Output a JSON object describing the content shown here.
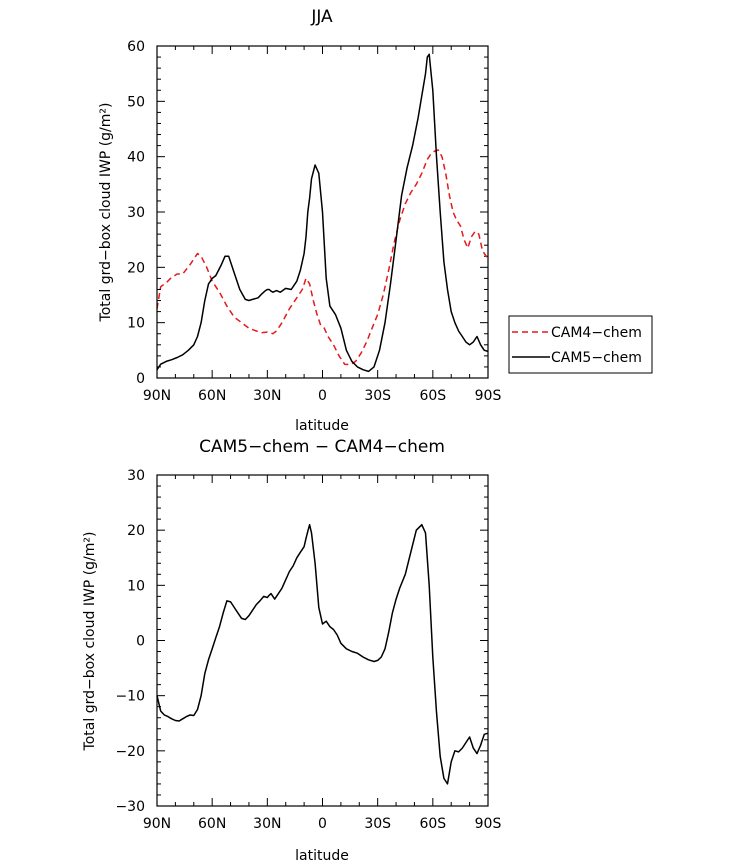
{
  "chart_data": [
    {
      "type": "line",
      "title": "JJA",
      "xlabel": "latitude",
      "ylabel": "Total grd−box cloud IWP (g/m²)",
      "x_tick_labels": [
        "90N",
        "60N",
        "30N",
        "0",
        "30S",
        "60S",
        "90S"
      ],
      "x_tick_values": [
        90,
        60,
        30,
        0,
        -30,
        -60,
        -90
      ],
      "xlim": [
        90,
        -90
      ],
      "y_tick_labels": [
        "0",
        "10",
        "20",
        "30",
        "40",
        "50",
        "60"
      ],
      "y_tick_values": [
        0,
        10,
        20,
        30,
        40,
        50,
        60
      ],
      "ylim": [
        0,
        60
      ],
      "legend": "right",
      "series": [
        {
          "name": "CAM4−chem",
          "color": "#e41a1c",
          "dash": "dashed",
          "x": [
            90,
            88,
            85,
            82,
            79,
            76,
            72,
            68,
            66,
            63,
            60,
            56,
            52,
            48,
            44,
            40,
            36,
            33,
            30,
            27,
            25,
            22,
            18,
            14,
            11,
            9,
            7,
            5,
            3,
            1,
            -1,
            -3,
            -6,
            -9,
            -12,
            -15,
            -18,
            -21,
            -24,
            -27,
            -30,
            -33,
            -36,
            -39,
            -42,
            -45,
            -48,
            -51,
            -54,
            -57,
            -59,
            -61,
            -63,
            -65,
            -67,
            -69,
            -71,
            -73,
            -75,
            -77,
            -79,
            -81,
            -83,
            -85,
            -87,
            -89,
            -90
          ],
          "y": [
            12.5,
            16.5,
            17.2,
            18.2,
            18.8,
            18.8,
            20.5,
            22.5,
            22.0,
            20.0,
            17.5,
            15.5,
            13.0,
            11.0,
            10.0,
            9.0,
            8.5,
            8.2,
            8.3,
            8.0,
            8.5,
            10.0,
            12.5,
            14.5,
            16.0,
            18.0,
            17.0,
            14.0,
            11.5,
            9.5,
            9.0,
            7.5,
            6.0,
            4.0,
            2.5,
            2.4,
            3.0,
            4.5,
            6.5,
            9.0,
            11.5,
            15.0,
            19.5,
            24.5,
            28.5,
            31.5,
            33.5,
            35.0,
            37.0,
            39.5,
            40.5,
            41.0,
            41.2,
            40.0,
            37.0,
            33.0,
            30.0,
            28.5,
            27.5,
            25.0,
            23.5,
            25.5,
            26.5,
            26.0,
            23.0,
            22.0,
            21.5
          ]
        },
        {
          "name": "CAM5−chem",
          "color": "#000000",
          "dash": "solid",
          "x": [
            90,
            88,
            85,
            82,
            79,
            76,
            73,
            70,
            68,
            66,
            64,
            62,
            60,
            58,
            55,
            53,
            51,
            48,
            45,
            42,
            40,
            38,
            35,
            33,
            31,
            30,
            29,
            28,
            27,
            25,
            23,
            20,
            17,
            14,
            12,
            10,
            9,
            8,
            7,
            6,
            4,
            2,
            0,
            -2,
            -4,
            -7,
            -10,
            -13,
            -16,
            -19,
            -22,
            -25,
            -28,
            -31,
            -34,
            -37,
            -40,
            -43,
            -46,
            -49,
            -52,
            -54,
            -56,
            -57,
            -58,
            -60,
            -62,
            -64,
            -66,
            -68,
            -70,
            -72,
            -74,
            -76,
            -78,
            -80,
            -82,
            -84,
            -86,
            -88,
            -90
          ],
          "y": [
            1.5,
            2.5,
            3.0,
            3.3,
            3.7,
            4.2,
            5.0,
            6.0,
            7.5,
            10.0,
            14.0,
            17.0,
            18.0,
            18.5,
            20.5,
            22.0,
            22.0,
            19.0,
            16.0,
            14.2,
            14.0,
            14.2,
            14.5,
            15.2,
            15.8,
            16.0,
            16.0,
            15.7,
            15.5,
            15.8,
            15.5,
            16.2,
            16.0,
            17.5,
            19.5,
            22.5,
            25.5,
            30.0,
            32.5,
            36.0,
            38.5,
            37.0,
            30.0,
            18.0,
            13.0,
            11.5,
            9.0,
            5.0,
            3.0,
            2.0,
            1.5,
            1.2,
            2.0,
            5.0,
            10.0,
            17.0,
            25.0,
            33.0,
            38.0,
            42.0,
            47.0,
            51.0,
            55.0,
            58.0,
            58.5,
            52.0,
            40.0,
            30.0,
            21.0,
            16.0,
            12.0,
            10.0,
            8.5,
            7.5,
            6.5,
            6.0,
            6.5,
            7.5,
            6.0,
            5.0,
            4.8
          ]
        }
      ]
    },
    {
      "type": "line",
      "title": "CAM5−chem − CAM4−chem",
      "xlabel": "latitude",
      "ylabel": "Total grd−box cloud IWP (g/m²)",
      "x_tick_labels": [
        "90N",
        "60N",
        "30N",
        "0",
        "30S",
        "60S",
        "90S"
      ],
      "x_tick_values": [
        90,
        60,
        30,
        0,
        -30,
        -60,
        -90
      ],
      "xlim": [
        90,
        -90
      ],
      "y_tick_labels": [
        "−30",
        "−20",
        "−10",
        "0",
        "10",
        "20",
        "30"
      ],
      "y_tick_values": [
        -30,
        -20,
        -10,
        0,
        10,
        20,
        30
      ],
      "ylim": [
        -30,
        30
      ],
      "series": [
        {
          "color": "#000000",
          "dash": "solid",
          "x": [
            90,
            88,
            86,
            84,
            82,
            80,
            78,
            76,
            74,
            72,
            70,
            68,
            66,
            64,
            62,
            60,
            58,
            56,
            54,
            52,
            50,
            48,
            46,
            44,
            42,
            40,
            38,
            36,
            34,
            32,
            30,
            29,
            28,
            27,
            26,
            24,
            22,
            20,
            18,
            16,
            14,
            12,
            10,
            9,
            8,
            7,
            6,
            4,
            2,
            0,
            -2,
            -4,
            -6,
            -8,
            -10,
            -13,
            -16,
            -19,
            -22,
            -25,
            -28,
            -30,
            -32,
            -34,
            -36,
            -38,
            -40,
            -42,
            -45,
            -48,
            -51,
            -54,
            -56,
            -58,
            -60,
            -62,
            -64,
            -66,
            -68,
            -70,
            -72,
            -74,
            -76,
            -78,
            -80,
            -82,
            -84,
            -86,
            -88,
            -90
          ],
          "y": [
            -10.0,
            -12.8,
            -13.5,
            -13.8,
            -14.2,
            -14.5,
            -14.6,
            -14.2,
            -13.8,
            -13.5,
            -13.6,
            -12.5,
            -10.0,
            -6.0,
            -3.5,
            -1.5,
            0.5,
            2.5,
            5.0,
            7.2,
            7.0,
            6.0,
            5.0,
            4.0,
            3.8,
            4.5,
            5.5,
            6.5,
            7.2,
            8.0,
            7.8,
            8.2,
            8.5,
            8.0,
            7.5,
            8.5,
            9.5,
            11.0,
            12.5,
            13.5,
            15.0,
            16.0,
            17.0,
            18.5,
            19.8,
            21.0,
            19.5,
            14.0,
            6.0,
            3.0,
            3.5,
            2.5,
            2.0,
            1.0,
            -0.5,
            -1.5,
            -2.0,
            -2.3,
            -3.0,
            -3.5,
            -3.8,
            -3.6,
            -3.0,
            -1.5,
            1.5,
            5.0,
            7.5,
            9.5,
            12.0,
            16.0,
            20.0,
            21.0,
            19.5,
            10.0,
            -3.0,
            -13.0,
            -21.0,
            -25.0,
            -26.0,
            -22.0,
            -20.0,
            -20.2,
            -19.5,
            -18.5,
            -17.5,
            -19.5,
            -20.5,
            -19.0,
            -17.0,
            -16.8
          ]
        }
      ]
    }
  ]
}
